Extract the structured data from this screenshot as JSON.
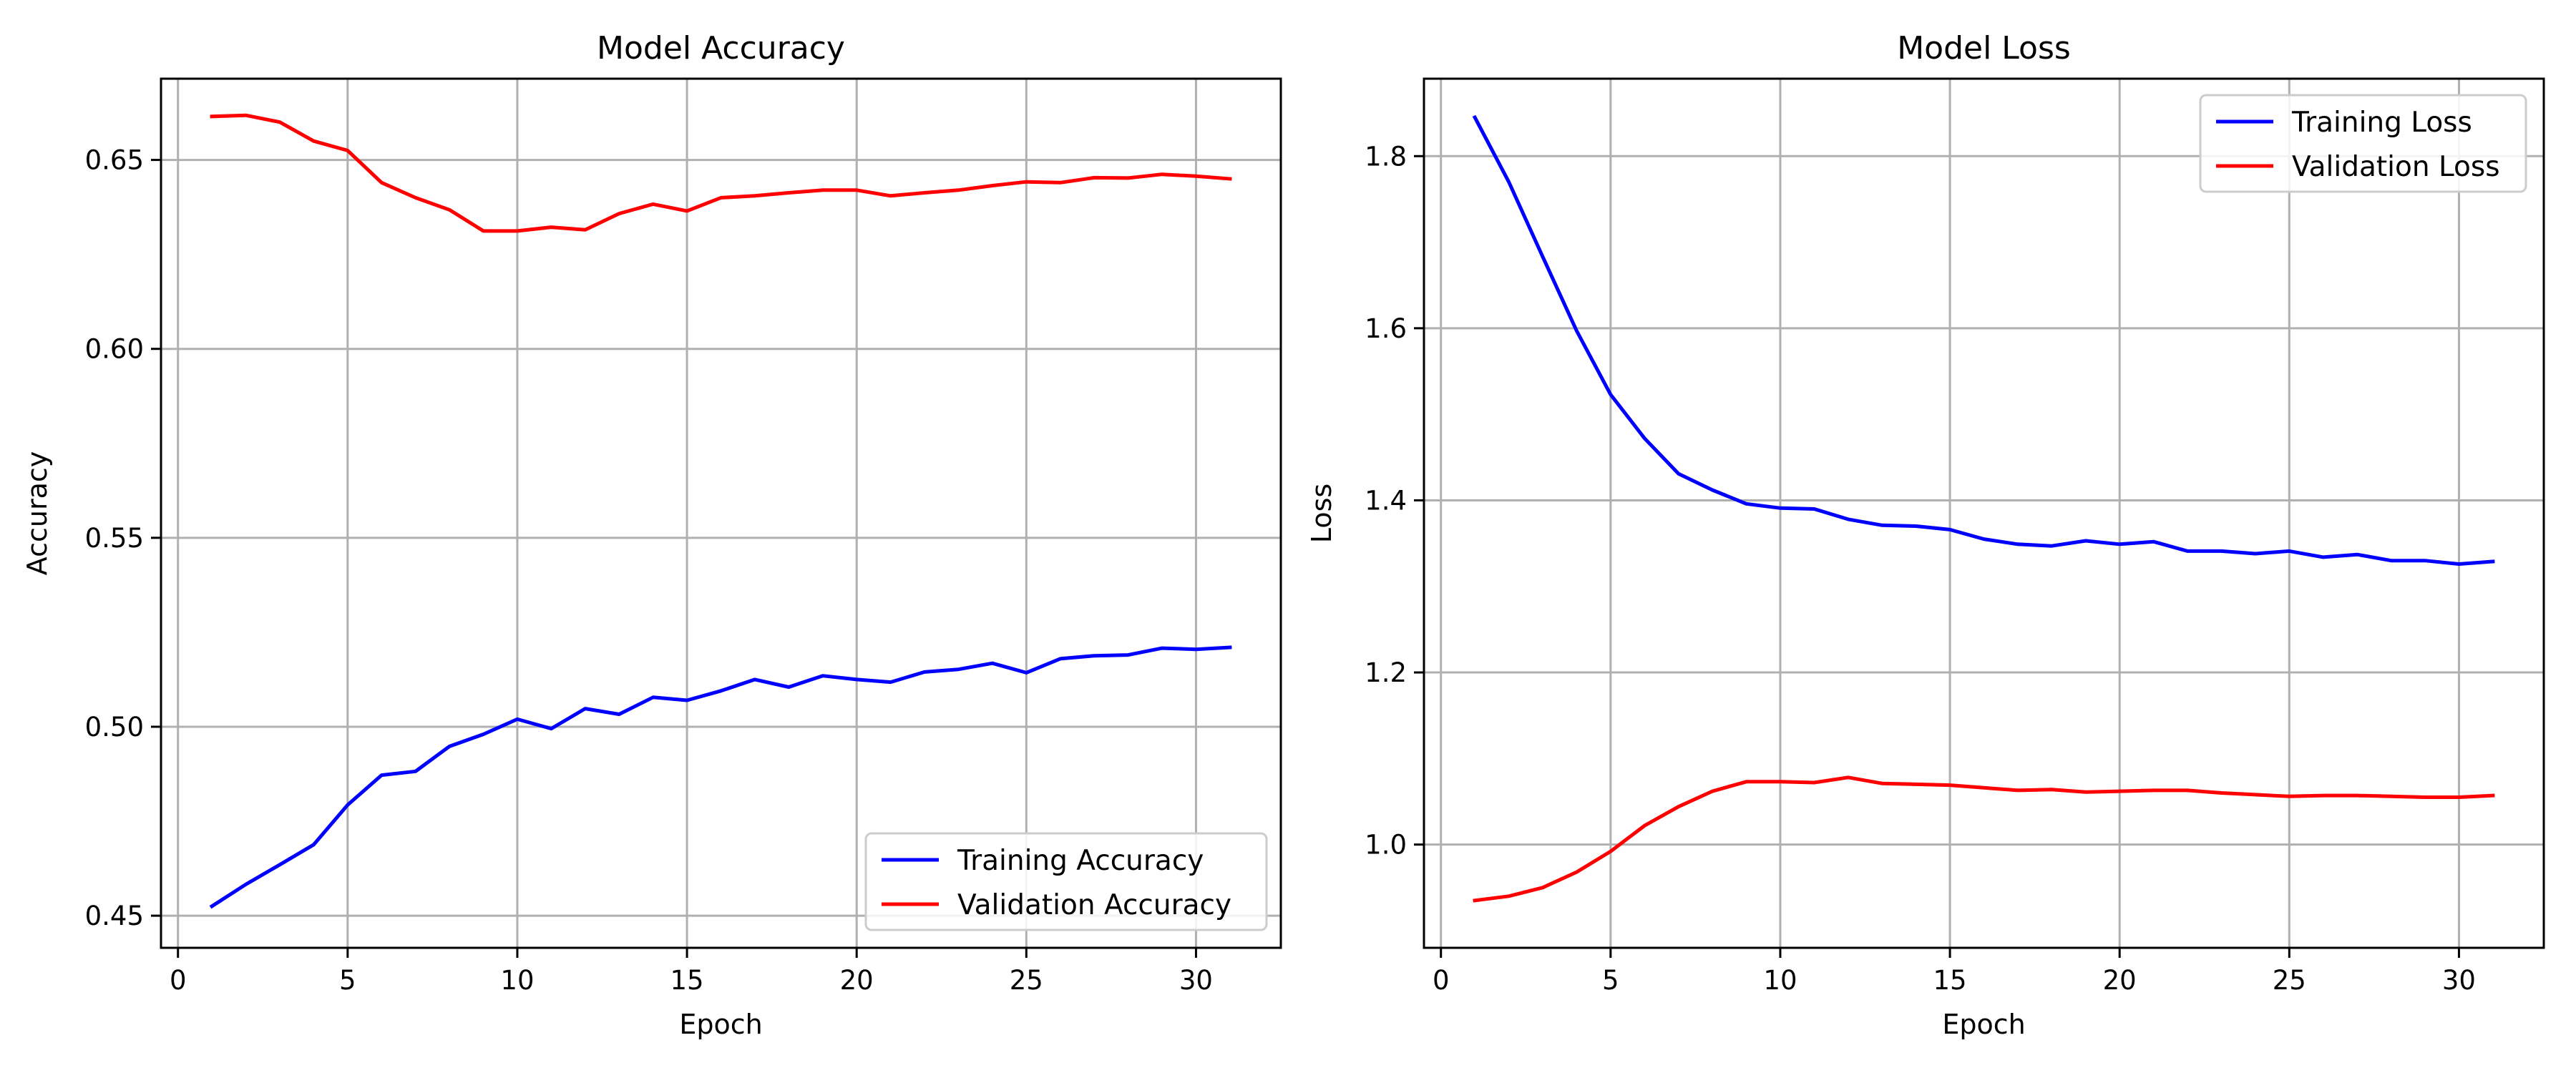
{
  "chart_data": [
    {
      "type": "line",
      "title": "Model Accuracy",
      "xlabel": "Epoch",
      "ylabel": "Accuracy",
      "xlim": [
        -0.5,
        32.5
      ],
      "ylim": [
        0.4415,
        0.6715
      ],
      "x_ticks": [
        0,
        5,
        10,
        15,
        20,
        25,
        30
      ],
      "y_ticks": [
        0.45,
        0.5,
        0.55,
        0.6,
        0.65
      ],
      "y_tick_labels": [
        "0.45",
        "0.50",
        "0.55",
        "0.60",
        "0.65"
      ],
      "grid": true,
      "legend_position": "lower-right",
      "x": [
        1,
        2,
        3,
        4,
        5,
        6,
        7,
        8,
        9,
        10,
        11,
        12,
        13,
        14,
        15,
        16,
        17,
        18,
        19,
        20,
        21,
        22,
        23,
        24,
        25,
        26,
        27,
        28,
        29,
        30,
        31
      ],
      "series": [
        {
          "name": "Training Accuracy",
          "color": "#0000ff",
          "values": [
            0.4525,
            0.4583,
            0.4635,
            0.4688,
            0.4793,
            0.4872,
            0.4882,
            0.4948,
            0.498,
            0.502,
            0.4995,
            0.5048,
            0.5033,
            0.5078,
            0.507,
            0.5095,
            0.5125,
            0.5105,
            0.5135,
            0.5125,
            0.5118,
            0.5145,
            0.5152,
            0.5168,
            0.5143,
            0.518,
            0.5188,
            0.519,
            0.5208,
            0.5205,
            0.521
          ]
        },
        {
          "name": "Validation Accuracy",
          "color": "#ff0000",
          "values": [
            0.6615,
            0.6618,
            0.66,
            0.655,
            0.6525,
            0.644,
            0.64,
            0.6368,
            0.6312,
            0.6312,
            0.6322,
            0.6315,
            0.6358,
            0.6383,
            0.6365,
            0.64,
            0.6405,
            0.6413,
            0.642,
            0.642,
            0.6405,
            0.6413,
            0.642,
            0.6432,
            0.6442,
            0.644,
            0.6453,
            0.6452,
            0.6462,
            0.6457,
            0.645
          ]
        }
      ]
    },
    {
      "type": "line",
      "title": "Model Loss",
      "xlabel": "Epoch",
      "ylabel": "Loss",
      "xlim": [
        -0.5,
        32.5
      ],
      "ylim": [
        0.88,
        1.89
      ],
      "x_ticks": [
        0,
        5,
        10,
        15,
        20,
        25,
        30
      ],
      "y_ticks": [
        1.0,
        1.2,
        1.4,
        1.6,
        1.8
      ],
      "y_tick_labels": [
        "1.0",
        "1.2",
        "1.4",
        "1.6",
        "1.8"
      ],
      "grid": true,
      "legend_position": "top-right",
      "x": [
        1,
        2,
        3,
        4,
        5,
        6,
        7,
        8,
        9,
        10,
        11,
        12,
        13,
        14,
        15,
        16,
        17,
        18,
        19,
        20,
        21,
        22,
        23,
        24,
        25,
        26,
        27,
        28,
        29,
        30,
        31
      ],
      "series": [
        {
          "name": "Training Loss",
          "color": "#0000ff",
          "values": [
            1.845,
            1.77,
            1.683,
            1.597,
            1.523,
            1.472,
            1.431,
            1.412,
            1.396,
            1.391,
            1.39,
            1.378,
            1.371,
            1.37,
            1.366,
            1.355,
            1.349,
            1.347,
            1.353,
            1.349,
            1.352,
            1.341,
            1.341,
            1.338,
            1.341,
            1.334,
            1.337,
            1.33,
            1.33,
            1.326,
            1.329
          ]
        },
        {
          "name": "Validation Loss",
          "color": "#ff0000",
          "values": [
            0.935,
            0.94,
            0.95,
            0.968,
            0.992,
            1.022,
            1.044,
            1.062,
            1.073,
            1.073,
            1.072,
            1.078,
            1.071,
            1.07,
            1.069,
            1.066,
            1.063,
            1.064,
            1.061,
            1.062,
            1.063,
            1.063,
            1.06,
            1.058,
            1.056,
            1.057,
            1.057,
            1.056,
            1.055,
            1.055,
            1.057
          ]
        }
      ]
    }
  ]
}
